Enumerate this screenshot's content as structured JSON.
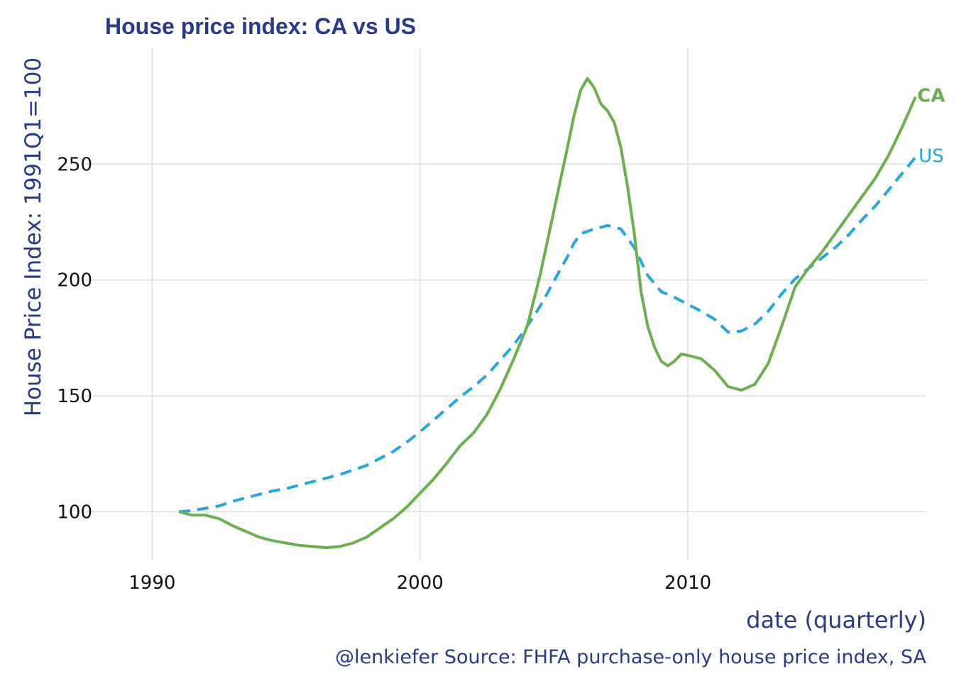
{
  "chart_data": {
    "type": "line",
    "title": "House price index: CA vs US",
    "xlabel": "date (quarterly)",
    "ylabel": "House Price Index: 1991Q1=100",
    "caption": "@lenkiefer Source: FHFA purchase-only house price index, SA",
    "xlim": [
      1987.5,
      2018.9
    ],
    "ylim": [
      79,
      300
    ],
    "x_ticks": [
      1990,
      2000,
      2010
    ],
    "y_ticks": [
      100,
      150,
      200,
      250
    ],
    "grid": true,
    "legend": "direct labels at line ends",
    "series": [
      {
        "name": "CA",
        "color": "#6ab04c",
        "dash": "solid",
        "points": [
          [
            1991.0,
            100
          ],
          [
            1991.5,
            98.5
          ],
          [
            1992.0,
            98.5
          ],
          [
            1992.5,
            97
          ],
          [
            1993.0,
            94
          ],
          [
            1993.5,
            91.5
          ],
          [
            1994.0,
            89
          ],
          [
            1994.5,
            87.5
          ],
          [
            1995.0,
            86.5
          ],
          [
            1995.5,
            85.5
          ],
          [
            1996.0,
            85
          ],
          [
            1996.5,
            84.5
          ],
          [
            1997.0,
            85
          ],
          [
            1997.5,
            86.5
          ],
          [
            1998.0,
            89
          ],
          [
            1998.5,
            93
          ],
          [
            1999.0,
            97
          ],
          [
            1999.5,
            102
          ],
          [
            2000.0,
            108
          ],
          [
            2000.5,
            114
          ],
          [
            2001.0,
            121
          ],
          [
            2001.5,
            128.5
          ],
          [
            2002.0,
            134
          ],
          [
            2002.5,
            142
          ],
          [
            2003.0,
            153
          ],
          [
            2003.5,
            166
          ],
          [
            2004.0,
            180
          ],
          [
            2004.5,
            203
          ],
          [
            2005.0,
            230
          ],
          [
            2005.5,
            257
          ],
          [
            2005.75,
            271
          ],
          [
            2006.0,
            282
          ],
          [
            2006.25,
            287
          ],
          [
            2006.5,
            283
          ],
          [
            2006.75,
            276
          ],
          [
            2007.0,
            273
          ],
          [
            2007.25,
            268
          ],
          [
            2007.5,
            257
          ],
          [
            2007.75,
            240
          ],
          [
            2008.0,
            220
          ],
          [
            2008.25,
            195
          ],
          [
            2008.5,
            180
          ],
          [
            2008.75,
            171
          ],
          [
            2009.0,
            165
          ],
          [
            2009.25,
            163
          ],
          [
            2009.5,
            165
          ],
          [
            2009.75,
            168
          ],
          [
            2010.0,
            167.5
          ],
          [
            2010.5,
            166
          ],
          [
            2011.0,
            161
          ],
          [
            2011.5,
            154
          ],
          [
            2012.0,
            152.5
          ],
          [
            2012.5,
            155
          ],
          [
            2013.0,
            164
          ],
          [
            2013.5,
            180
          ],
          [
            2014.0,
            197
          ],
          [
            2014.5,
            205
          ],
          [
            2015.0,
            212
          ],
          [
            2015.5,
            220
          ],
          [
            2016.0,
            228
          ],
          [
            2016.5,
            236
          ],
          [
            2017.0,
            244
          ],
          [
            2017.5,
            254
          ],
          [
            2018.0,
            266
          ],
          [
            2018.5,
            279
          ]
        ]
      },
      {
        "name": "US",
        "color": "#22a7e0",
        "dash": "dashed",
        "points": [
          [
            1991.0,
            100
          ],
          [
            1991.5,
            100.5
          ],
          [
            1992.0,
            101.5
          ],
          [
            1992.5,
            102.5
          ],
          [
            1993.0,
            104.5
          ],
          [
            1993.5,
            106
          ],
          [
            1994.0,
            107.5
          ],
          [
            1994.5,
            109
          ],
          [
            1995.0,
            110
          ],
          [
            1995.5,
            111.5
          ],
          [
            1996.0,
            113
          ],
          [
            1996.5,
            114.5
          ],
          [
            1997.0,
            116
          ],
          [
            1997.5,
            118
          ],
          [
            1998.0,
            120
          ],
          [
            1998.5,
            123
          ],
          [
            1999.0,
            126
          ],
          [
            1999.5,
            130
          ],
          [
            2000.0,
            134.5
          ],
          [
            2000.5,
            139.5
          ],
          [
            2001.0,
            144.5
          ],
          [
            2001.5,
            149.5
          ],
          [
            2002.0,
            154
          ],
          [
            2002.5,
            159
          ],
          [
            2003.0,
            165.5
          ],
          [
            2003.5,
            172
          ],
          [
            2004.0,
            180
          ],
          [
            2004.5,
            189
          ],
          [
            2005.0,
            199.5
          ],
          [
            2005.5,
            210
          ],
          [
            2005.75,
            216
          ],
          [
            2006.0,
            220
          ],
          [
            2006.5,
            222
          ],
          [
            2007.0,
            223.5
          ],
          [
            2007.5,
            222
          ],
          [
            2008.0,
            214
          ],
          [
            2008.5,
            202
          ],
          [
            2009.0,
            195
          ],
          [
            2009.5,
            192.5
          ],
          [
            2010.0,
            189.5
          ],
          [
            2010.5,
            186.5
          ],
          [
            2011.0,
            183
          ],
          [
            2011.5,
            177.5
          ],
          [
            2012.0,
            178
          ],
          [
            2012.5,
            181
          ],
          [
            2013.0,
            186.5
          ],
          [
            2013.5,
            194
          ],
          [
            2014.0,
            200.5
          ],
          [
            2014.5,
            205
          ],
          [
            2015.0,
            209.5
          ],
          [
            2015.5,
            214
          ],
          [
            2016.0,
            219.5
          ],
          [
            2016.5,
            226
          ],
          [
            2017.0,
            232
          ],
          [
            2017.5,
            239
          ],
          [
            2018.0,
            246
          ],
          [
            2018.5,
            253
          ]
        ]
      }
    ]
  }
}
